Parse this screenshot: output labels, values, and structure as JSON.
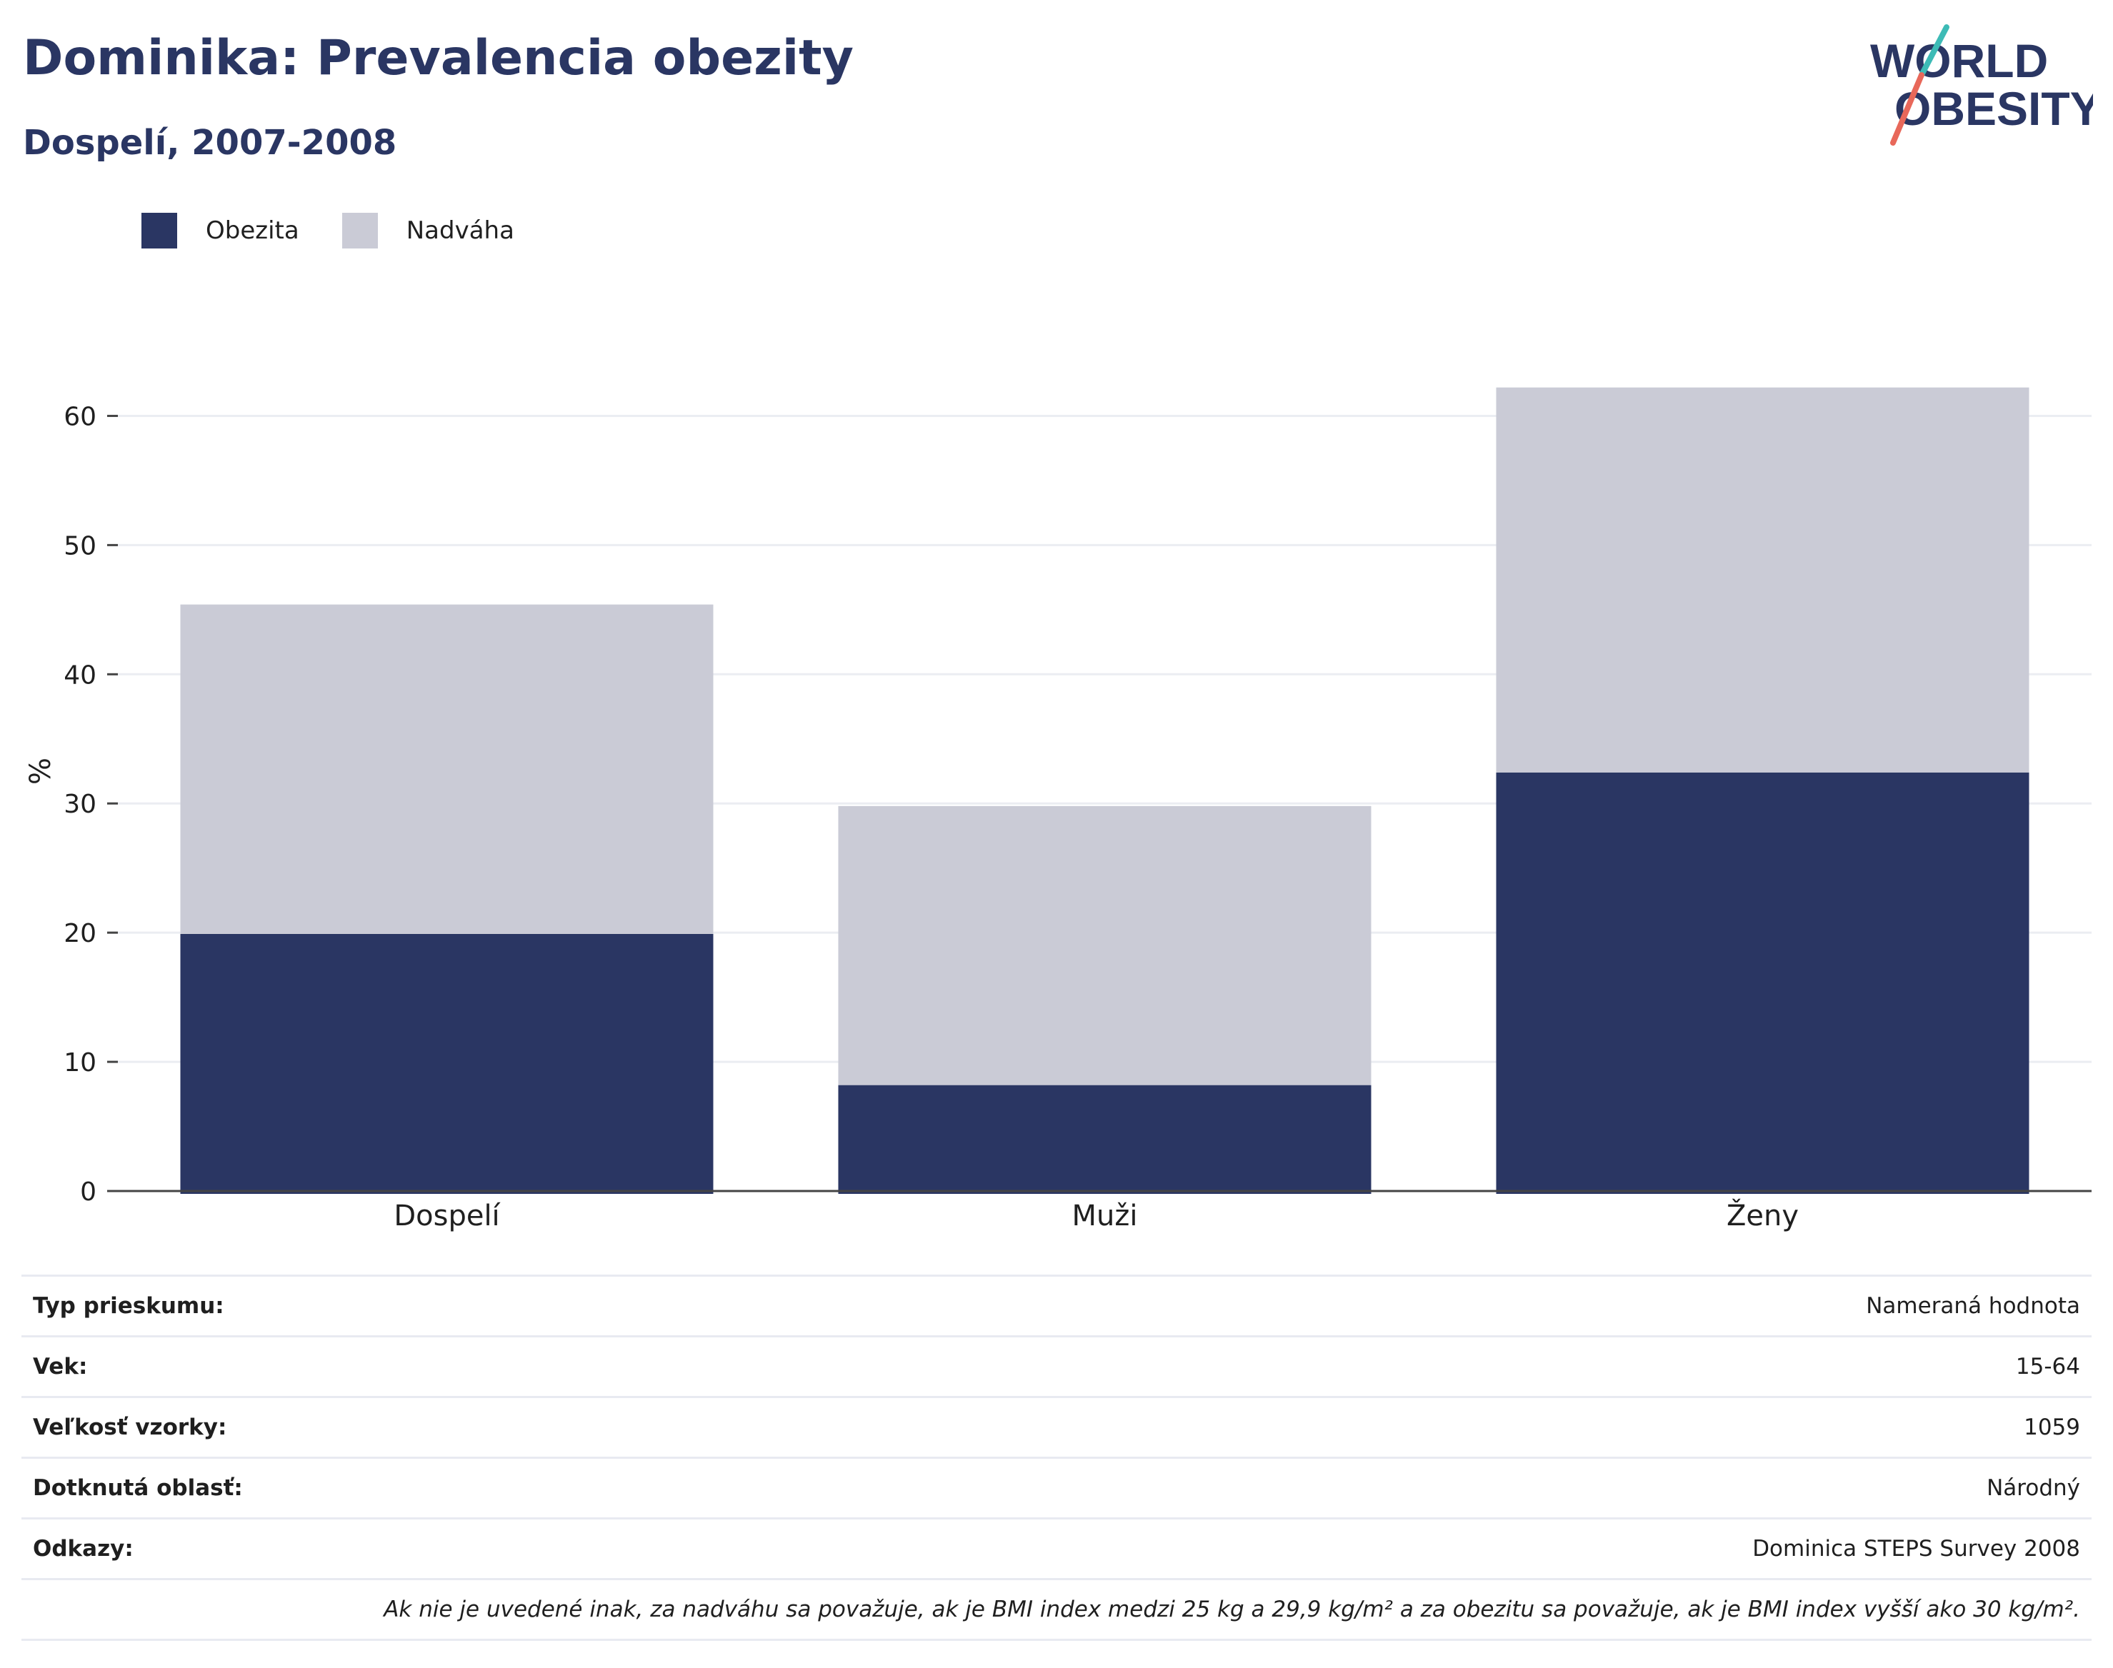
{
  "header": {
    "title": "Dominika: Prevalencia obezity",
    "subtitle": "Dospelí, 2007-2008"
  },
  "logo": {
    "line1": "WORLD",
    "line2": "OBESITY"
  },
  "colors": {
    "obezita": "#2a3663",
    "nadvaha": "#cacbd6",
    "text": "#2a3663",
    "grid": "#ebedf2"
  },
  "legend": {
    "items": [
      "Obezita",
      "Nadváha"
    ]
  },
  "chart_data": {
    "type": "bar",
    "stacked": true,
    "categories": [
      "Dospelí",
      "Muži",
      "Ženy"
    ],
    "series": [
      {
        "name": "Obezita",
        "values": [
          19.9,
          8.2,
          32.4
        ]
      },
      {
        "name": "Nadváha",
        "values": [
          25.5,
          21.6,
          29.8
        ]
      }
    ],
    "ylabel": "%",
    "ylim": [
      0,
      65
    ],
    "yticks": [
      0,
      10,
      20,
      30,
      40,
      50,
      60
    ],
    "grid": true,
    "legend_position": "top-left"
  },
  "info_table": {
    "rows": [
      {
        "label": "Typ prieskumu:",
        "value": "Nameraná hodnota"
      },
      {
        "label": "Vek:",
        "value": "15-64"
      },
      {
        "label": "Veľkosť vzorky:",
        "value": "1059"
      },
      {
        "label": "Dotknutá oblasť:",
        "value": "Národný"
      },
      {
        "label": "Odkazy:",
        "value": "Dominica STEPS Survey 2008"
      }
    ],
    "note": "Ak nie je uvedené inak, za nadváhu sa považuje, ak je BMI index medzi 25 kg a 29,9 kg/m² a za obezitu sa považuje, ak je BMI index vyšší ako 30 kg/m²."
  }
}
